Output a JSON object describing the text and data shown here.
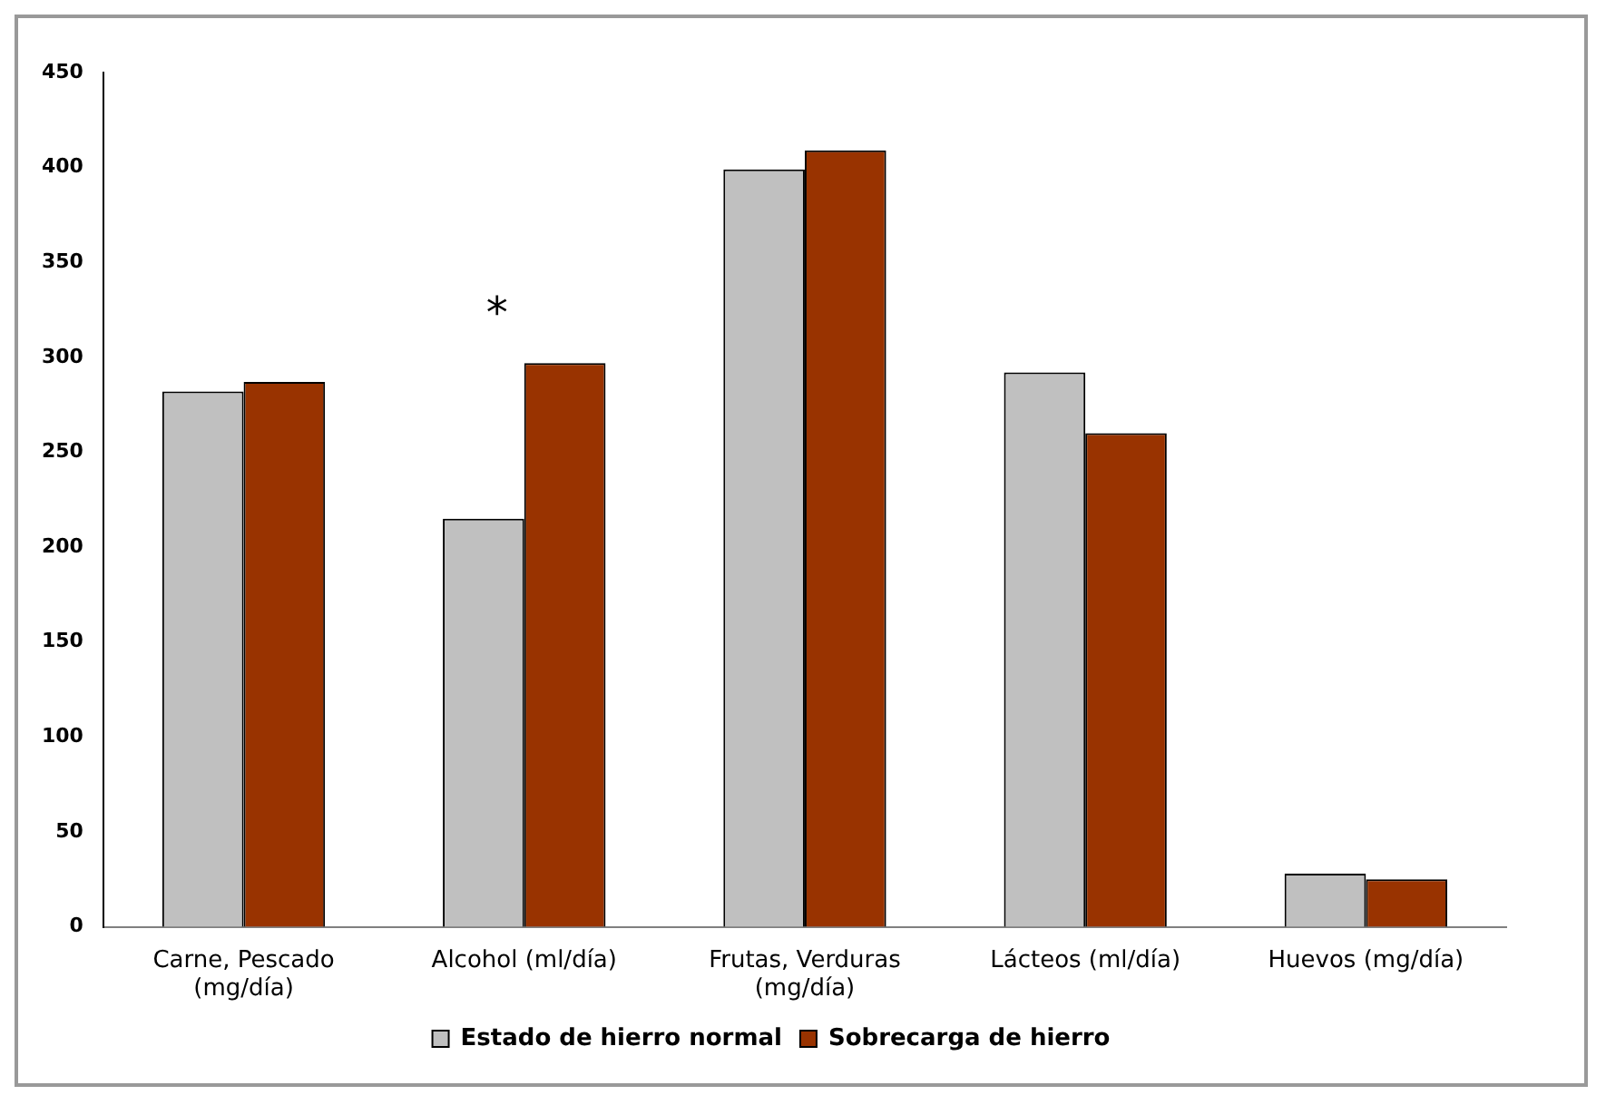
{
  "chart_data": {
    "type": "bar",
    "categories": [
      "Carne, Pescado (mg/día)",
      "Alcohol (ml/día)",
      "Frutas, Verduras (mg/día)",
      "Lácteos (ml/día)",
      "Huevos (mg/día)"
    ],
    "series": [
      {
        "name": "Estado de hierro normal",
        "color": "#c0c0c0",
        "values": [
          282,
          215,
          399,
          292,
          28
        ]
      },
      {
        "name": "Sobrecarga de hierro",
        "color": "#993300",
        "values": [
          287,
          297,
          409,
          260,
          25
        ]
      }
    ],
    "ylim": [
      0,
      450
    ],
    "yticks": [
      0,
      50,
      100,
      150,
      200,
      250,
      300,
      350,
      400,
      450
    ],
    "grid": false,
    "legend": "bottom",
    "annotations": [
      "*"
    ]
  }
}
